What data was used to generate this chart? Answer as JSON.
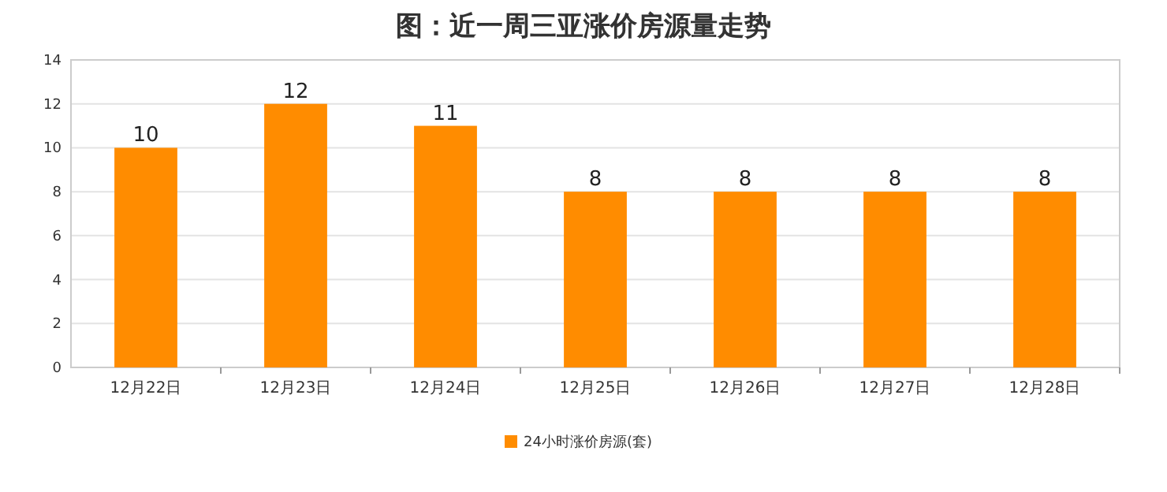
{
  "chart_data": {
    "type": "bar",
    "title": "图：近一周三亚涨价房源量走势",
    "categories": [
      "12月22日",
      "12月23日",
      "12月24日",
      "12月25日",
      "12月26日",
      "12月27日",
      "12月28日"
    ],
    "series": [
      {
        "name": "24小时涨价房源(套)",
        "color": "#ff8c00",
        "values": [
          10,
          12,
          11,
          8,
          8,
          8,
          8
        ]
      }
    ],
    "ylim": [
      0,
      14
    ],
    "yticks": [
      0,
      2,
      4,
      6,
      8,
      10,
      12,
      14
    ],
    "grid": "y",
    "legend": "bottom",
    "data_labels": true
  }
}
